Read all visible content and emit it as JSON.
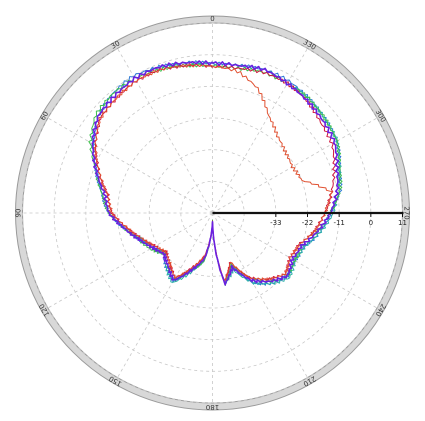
{
  "chart_data": {
    "type": "polar-line",
    "title": "",
    "angle_labels": [
      "0",
      "330",
      "300",
      "270",
      "240",
      "210",
      "180",
      "150",
      "120",
      "90",
      "60",
      "30"
    ],
    "angle_positions_deg": [
      0,
      330,
      300,
      270,
      240,
      210,
      180,
      150,
      120,
      90,
      60,
      30
    ],
    "rotation": "counter-clockwise from top",
    "radial_axis": {
      "tick_labels": [
        "-33",
        "-22",
        "-11",
        "0",
        "11"
      ],
      "tick_values": [
        -33,
        -22,
        -11,
        0,
        11
      ],
      "range": [
        -55,
        11
      ],
      "rings": [
        -44,
        -33,
        -22,
        -11,
        0,
        11
      ]
    },
    "grid": true,
    "angles_deg": [
      0,
      10,
      20,
      30,
      40,
      50,
      60,
      70,
      80,
      90,
      100,
      110,
      120,
      130,
      140,
      150,
      160,
      170,
      180,
      190,
      200,
      210,
      220,
      230,
      240,
      250,
      260,
      270,
      280,
      290,
      300,
      310,
      320,
      330,
      340,
      350,
      360
    ],
    "series": [
      {
        "color": "#2a78d4",
        "values": [
          -3,
          -2,
          -1,
          0,
          -1,
          -3,
          -7,
          -12,
          -16,
          -19,
          -24,
          -28,
          -31,
          -33,
          -30,
          -28,
          -34,
          -38,
          -52,
          -30,
          -36,
          -27,
          -23,
          -21,
          -22,
          -21,
          -17,
          -14,
          -10,
          -8,
          -5,
          -4,
          -3,
          -2,
          -2,
          -3,
          -3
        ]
      },
      {
        "color": "#2bb0a8",
        "values": [
          -3,
          -3,
          -1,
          -1,
          -2,
          -3,
          -7,
          -12,
          -17,
          -19,
          -24,
          -29,
          -31,
          -34,
          -30,
          -27,
          -33,
          -39,
          -52,
          -30,
          -34,
          -27,
          -23,
          -20,
          -22,
          -21,
          -17,
          -13,
          -11,
          -8,
          -5,
          -4,
          -3,
          -3,
          -2,
          -3,
          -3
        ]
      },
      {
        "color": "#3dbf4a",
        "values": [
          -4,
          -3,
          -2,
          -1,
          -1,
          -2,
          -6,
          -12,
          -16,
          -19,
          -24,
          -28,
          -30,
          -33,
          -31,
          -28,
          -34,
          -38,
          -52,
          -30,
          -36,
          -29,
          -24,
          -21,
          -22,
          -22,
          -18,
          -14,
          -10,
          -8,
          -5,
          -4,
          -3,
          -3,
          -3,
          -4,
          -4
        ]
      },
      {
        "color": "#d0143c",
        "values": [
          -4,
          -3,
          -2,
          -2,
          -3,
          -4,
          -8,
          -13,
          -18,
          -20,
          -25,
          -29,
          -32,
          -34,
          -32,
          -29,
          -35,
          -40,
          -52,
          -31,
          -37,
          -29,
          -25,
          -22,
          -24,
          -23,
          -19,
          -16,
          -13,
          -10,
          -7,
          -6,
          -4,
          -3,
          -3,
          -4,
          -4
        ]
      },
      {
        "color": "#e05030",
        "values": [
          -4,
          -3,
          -2,
          -2,
          -3,
          -4,
          -8,
          -13,
          -18,
          -20,
          -25,
          -29,
          -32,
          -34,
          -32,
          -29,
          -35,
          -40,
          -52,
          -31,
          -37,
          -29,
          -25,
          -22,
          -24,
          -23,
          -19,
          -16,
          -13,
          -22,
          -23,
          -22,
          -20,
          -16,
          -9,
          -5,
          -4
        ]
      },
      {
        "color": "#6a1fe0",
        "values": [
          -3,
          -2,
          -1,
          -1,
          -2,
          -3,
          -7,
          -12,
          -17,
          -19,
          -24,
          -28,
          -31,
          -33,
          -31,
          -28,
          -34,
          -39,
          -52,
          -30,
          -35,
          -28,
          -24,
          -21,
          -23,
          -22,
          -18,
          -14,
          -11,
          -9,
          -6,
          -5,
          -4,
          -3,
          -2,
          -3,
          -3
        ]
      }
    ]
  }
}
